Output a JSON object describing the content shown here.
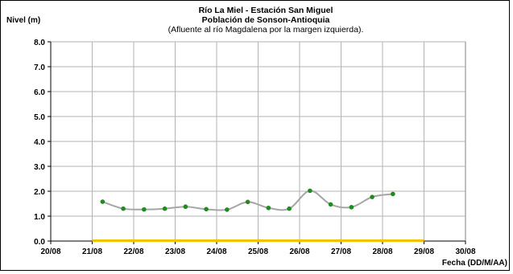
{
  "chart_data": {
    "type": "line",
    "title": "Río La Miel  - Estación San Miguel",
    "subtitle": "Población de Sonson-Antioquia",
    "subtitle2": "(Afluente al río Magdalena por la margen izquierda).",
    "ylabel": "Nivel (m)",
    "xlabel": "Fecha (DD/M/AA)",
    "ylim": [
      0,
      8
    ],
    "yticks": [
      "0.0",
      "1.0",
      "2.0",
      "3.0",
      "4.0",
      "5.0",
      "6.0",
      "7.0",
      "8.0"
    ],
    "xlim": [
      0,
      10
    ],
    "xticks": [
      "20/08",
      "21/08",
      "22/08",
      "23/08",
      "24/08",
      "25/08",
      "26/08",
      "27/08",
      "28/08",
      "29/08",
      "30/08"
    ],
    "grid": true,
    "series": [
      {
        "x": [
          1.25,
          1.75,
          2.25,
          2.75,
          3.25,
          3.75,
          4.25,
          4.75,
          5.25,
          5.75,
          6.25,
          6.75,
          7.25,
          7.75,
          8.25
        ],
        "y": [
          1.58,
          1.3,
          1.27,
          1.3,
          1.38,
          1.28,
          1.26,
          1.57,
          1.33,
          1.3,
          2.02,
          1.47,
          1.36,
          1.77,
          1.89
        ],
        "line_color": "#a6a6a6",
        "marker_color": "#1e8c1e"
      }
    ],
    "baseline": {
      "y": 0,
      "x_range": [
        1,
        9
      ],
      "color": "#f2c200"
    }
  }
}
